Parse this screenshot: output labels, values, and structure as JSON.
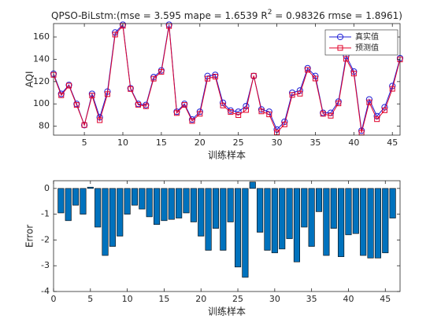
{
  "chart_data": [
    {
      "type": "line",
      "title": [
        "QPSO-BiLstm:(mse = 3.595 mape = 1.6539  R",
        "2",
        " = 0.98326 rmse = 1.8961)"
      ],
      "xlabel": "训练样本",
      "ylabel": "AQI",
      "x": [
        1,
        2,
        3,
        4,
        5,
        6,
        7,
        8,
        9,
        10,
        11,
        12,
        13,
        14,
        15,
        16,
        17,
        18,
        19,
        20,
        21,
        22,
        23,
        24,
        25,
        26,
        27,
        28,
        29,
        30,
        31,
        32,
        33,
        34,
        35,
        36,
        37,
        38,
        39,
        40,
        41,
        42,
        43,
        44,
        45,
        46
      ],
      "series": [
        {
          "name": "真实值",
          "color": "#1f1fd6",
          "marker": "circle",
          "values": [
            127,
            109,
            117,
            100,
            81,
            109,
            88,
            111,
            164,
            171,
            114,
            100,
            99,
            124,
            130,
            171,
            93,
            100,
            86,
            93,
            125,
            126,
            101,
            94,
            93,
            98,
            125,
            95,
            93,
            77,
            84,
            110,
            112,
            132,
            125,
            92,
            92,
            102,
            143,
            129,
            76,
            104,
            89,
            97,
            116,
            141
          ]
        },
        {
          "name": "预测值",
          "color": "#e0002a",
          "marker": "square",
          "values": [
            126.05,
            107.75,
            116.35,
            99,
            81.05,
            107.5,
            85.4,
            108.75,
            162.15,
            170,
            113.35,
            99.2,
            97.9,
            122.6,
            128.75,
            169.8,
            91.85,
            99.05,
            84.7,
            91.15,
            122.6,
            124.45,
            98.6,
            92.7,
            89.95,
            94.55,
            125.25,
            93.3,
            90.6,
            74.5,
            81.65,
            108.05,
            109.15,
            130.5,
            122.75,
            91.1,
            89.4,
            100.45,
            140.35,
            127.2,
            74.25,
            101.4,
            86.3,
            94.3,
            113.5,
            139.85
          ]
        }
      ],
      "xlim": [
        1,
        46
      ],
      "xticks": [
        5,
        10,
        15,
        20,
        25,
        30,
        35,
        40,
        45
      ],
      "ylim": [
        72,
        172
      ],
      "yticks": [
        80,
        100,
        120,
        140,
        160
      ],
      "legend": "upper right"
    },
    {
      "type": "bar",
      "xlabel": "训练样本",
      "ylabel": "Error",
      "x": [
        1,
        2,
        3,
        4,
        5,
        6,
        7,
        8,
        9,
        10,
        11,
        12,
        13,
        14,
        15,
        16,
        17,
        18,
        19,
        20,
        21,
        22,
        23,
        24,
        25,
        26,
        27,
        28,
        29,
        30,
        31,
        32,
        33,
        34,
        35,
        36,
        37,
        38,
        39,
        40,
        41,
        42,
        43,
        44,
        45,
        46
      ],
      "values": [
        -0.95,
        -1.25,
        -0.65,
        -1.0,
        0.05,
        -1.5,
        -2.6,
        -2.25,
        -1.85,
        -1.0,
        -0.65,
        -0.8,
        -1.1,
        -1.4,
        -1.25,
        -1.2,
        -1.15,
        -0.95,
        -1.3,
        -1.85,
        -2.4,
        -1.55,
        -2.4,
        -1.3,
        -3.05,
        -3.45,
        0.25,
        -1.7,
        -2.4,
        -2.5,
        -2.35,
        -1.95,
        -2.85,
        -1.5,
        -2.25,
        -0.9,
        -2.6,
        -1.55,
        -2.65,
        -1.8,
        -1.75,
        -2.6,
        -2.7,
        -2.7,
        -2.5,
        -1.15
      ],
      "color": "#0072bd",
      "xlim": [
        0,
        47
      ],
      "xticks": [
        0,
        5,
        10,
        15,
        20,
        25,
        30,
        35,
        40,
        45
      ],
      "ylim": [
        -4,
        0.3
      ],
      "yticks": [
        -4,
        -3,
        -2,
        -1,
        0
      ]
    }
  ]
}
